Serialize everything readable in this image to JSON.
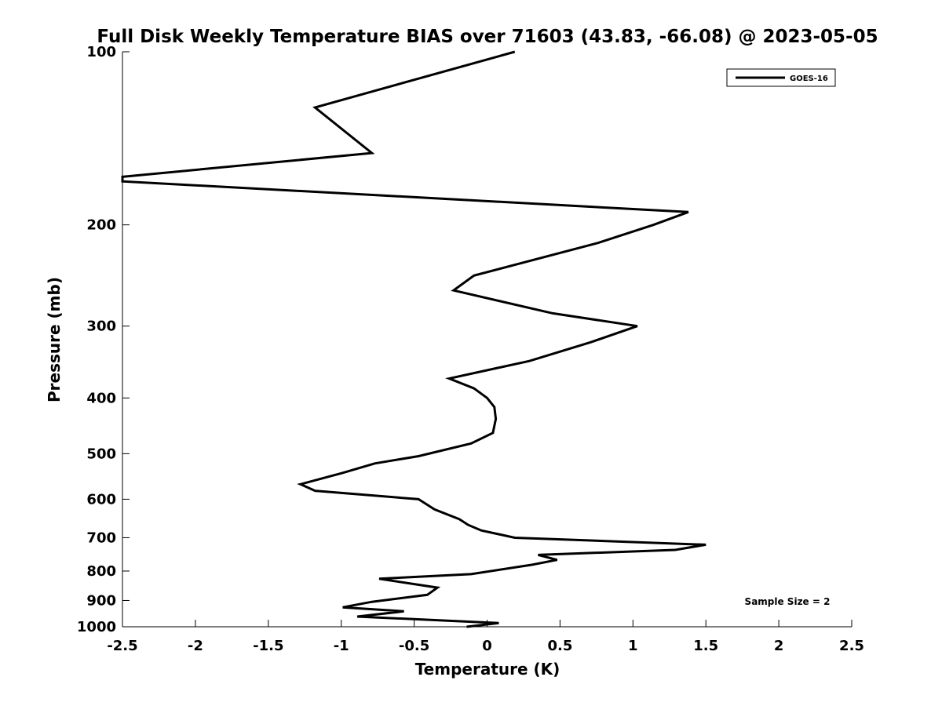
{
  "chart_data": {
    "type": "line",
    "title": "Full Disk Weekly Temperature BIAS over 71603 (43.83, -66.08) @ 2023-05-05",
    "xlabel": "Temperature (K)",
    "ylabel": "Pressure (mb)",
    "xlim": [
      -2.5,
      2.5
    ],
    "ylim": [
      1000,
      100
    ],
    "yscale": "log",
    "xticks": [
      -2.5,
      -2,
      -1.5,
      -1,
      -0.5,
      0,
      0.5,
      1,
      1.5,
      2,
      2.5
    ],
    "xtick_labels": [
      "-2.5",
      "-2",
      "-1.5",
      "-1",
      "-0.5",
      "0",
      "0.5",
      "1",
      "1.5",
      "2",
      "2.5"
    ],
    "yticks": [
      100,
      200,
      300,
      400,
      500,
      600,
      700,
      800,
      900,
      1000
    ],
    "ytick_labels": [
      "100",
      "200",
      "300",
      "400",
      "500",
      "600",
      "700",
      "800",
      "900",
      "1000"
    ],
    "grid": false,
    "legend_position": "top-right",
    "annotation": "Sample Size = 2",
    "series": [
      {
        "name": "GOES-16",
        "color": "#000000",
        "points": [
          {
            "t": 0.19,
            "p": 100
          },
          {
            "t": -1.18,
            "p": 125
          },
          {
            "t": -0.79,
            "p": 150
          },
          {
            "t": -2.5,
            "p": 165
          },
          {
            "t": -2.5,
            "p": 168
          },
          {
            "t": 1.38,
            "p": 190
          },
          {
            "t": 1.14,
            "p": 200
          },
          {
            "t": 0.76,
            "p": 215
          },
          {
            "t": -0.09,
            "p": 245
          },
          {
            "t": -0.23,
            "p": 260
          },
          {
            "t": 0.45,
            "p": 285
          },
          {
            "t": 1.03,
            "p": 300
          },
          {
            "t": 0.71,
            "p": 320
          },
          {
            "t": 0.29,
            "p": 345
          },
          {
            "t": -0.26,
            "p": 370
          },
          {
            "t": -0.09,
            "p": 385
          },
          {
            "t": 0.0,
            "p": 400
          },
          {
            "t": 0.05,
            "p": 415
          },
          {
            "t": 0.06,
            "p": 435
          },
          {
            "t": 0.04,
            "p": 460
          },
          {
            "t": -0.11,
            "p": 480
          },
          {
            "t": -0.47,
            "p": 505
          },
          {
            "t": -0.77,
            "p": 520
          },
          {
            "t": -0.99,
            "p": 540
          },
          {
            "t": -1.28,
            "p": 565
          },
          {
            "t": -1.18,
            "p": 580
          },
          {
            "t": -0.47,
            "p": 600
          },
          {
            "t": -0.36,
            "p": 625
          },
          {
            "t": -0.19,
            "p": 650
          },
          {
            "t": -0.13,
            "p": 665
          },
          {
            "t": -0.04,
            "p": 680
          },
          {
            "t": 0.19,
            "p": 700
          },
          {
            "t": 1.5,
            "p": 720
          },
          {
            "t": 1.29,
            "p": 735
          },
          {
            "t": 0.35,
            "p": 750
          },
          {
            "t": 0.48,
            "p": 765
          },
          {
            "t": 0.31,
            "p": 780
          },
          {
            "t": -0.11,
            "p": 810
          },
          {
            "t": -0.74,
            "p": 825
          },
          {
            "t": -0.34,
            "p": 855
          },
          {
            "t": -0.41,
            "p": 880
          },
          {
            "t": -0.79,
            "p": 905
          },
          {
            "t": -0.99,
            "p": 925
          },
          {
            "t": -0.57,
            "p": 940
          },
          {
            "t": -0.89,
            "p": 960
          },
          {
            "t": 0.08,
            "p": 985
          },
          {
            "t": -0.14,
            "p": 1000
          }
        ]
      }
    ]
  }
}
